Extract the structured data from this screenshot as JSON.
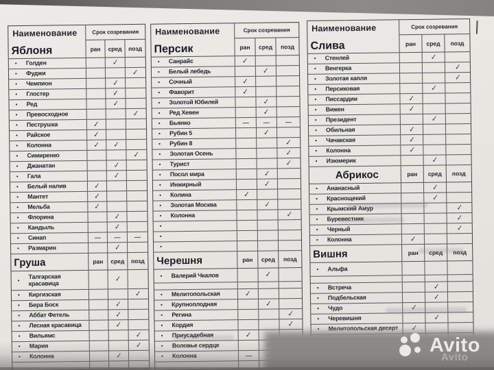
{
  "header_labels": {
    "name": "Наименование",
    "ripening": "Срок созревания",
    "early": "ран",
    "mid": "сред",
    "late": "позд"
  },
  "marks": {
    "check": "✓",
    "dash": "—",
    "bullet": "•"
  },
  "watermark": {
    "brand": "Avito"
  },
  "columns": [
    {
      "sections": [
        {
          "title": "Яблоня",
          "header": "full",
          "rows": [
            {
              "n": "Голден",
              "m": [
                "",
                "c",
                ""
              ]
            },
            {
              "n": "Фуджи",
              "m": [
                "",
                "",
                "c"
              ]
            },
            {
              "n": "Чемпион",
              "m": [
                "",
                "c",
                ""
              ]
            },
            {
              "n": "Глостер",
              "m": [
                "",
                "c",
                ""
              ]
            },
            {
              "n": "Ред",
              "m": [
                "",
                "c",
                ""
              ]
            },
            {
              "n": "Превосходное",
              "m": [
                "",
                "",
                "c"
              ]
            },
            {
              "n": "Пеструшка",
              "m": [
                "c",
                "",
                ""
              ]
            },
            {
              "n": "Райское",
              "m": [
                "c",
                "",
                ""
              ]
            },
            {
              "n": "Колонна",
              "m": [
                "c",
                "c",
                ""
              ]
            },
            {
              "n": "Симиренко",
              "m": [
                "",
                "",
                "c"
              ]
            },
            {
              "n": "Джанатан",
              "m": [
                "",
                "c",
                ""
              ]
            },
            {
              "n": "Гала",
              "m": [
                "",
                "c",
                ""
              ]
            },
            {
              "n": "Белый налив",
              "m": [
                "c",
                "",
                ""
              ]
            },
            {
              "n": "Мантет",
              "m": [
                "c",
                "",
                ""
              ]
            },
            {
              "n": "Мельба",
              "m": [
                "c",
                "",
                ""
              ]
            },
            {
              "n": "Флорина",
              "m": [
                "",
                "c",
                ""
              ]
            },
            {
              "n": "Кандыль",
              "m": [
                "",
                "c",
                ""
              ]
            },
            {
              "n": "Синап",
              "m": [
                "d",
                "d",
                "d"
              ]
            },
            {
              "n": "Размарин",
              "m": [
                "",
                "c",
                ""
              ]
            }
          ]
        },
        {
          "title": "Груша",
          "header": "compact",
          "rows": [
            {
              "n": "Талгарская красавица",
              "m": [
                "",
                "c",
                ""
              ],
              "tall2": true
            },
            {
              "n": "Киргизская",
              "m": [
                "",
                "",
                "c"
              ]
            },
            {
              "n": "Бера Боск",
              "m": [
                "",
                "c",
                ""
              ]
            },
            {
              "n": "Аббат Фетель",
              "m": [
                "",
                "c",
                ""
              ]
            },
            {
              "n": "Лесная красавица",
              "m": [
                "",
                "c",
                ""
              ]
            },
            {
              "n": "Вильямс",
              "m": [
                "",
                "",
                "c"
              ]
            },
            {
              "n": "Мария",
              "m": [
                "",
                "",
                "c"
              ]
            },
            {
              "n": "Колонна",
              "m": [
                "",
                "c",
                ""
              ]
            },
            {
              "n": "",
              "m": [
                "",
                "",
                ""
              ],
              "bullet": false,
              "empty": true
            }
          ]
        }
      ]
    },
    {
      "sections": [
        {
          "title": "Персик",
          "header": "full",
          "rows": [
            {
              "n": "Санрайс",
              "m": [
                "c",
                "",
                ""
              ]
            },
            {
              "n": "Белый лебедь",
              "m": [
                "",
                "c",
                ""
              ]
            },
            {
              "n": "Сочный",
              "m": [
                "c",
                "",
                ""
              ]
            },
            {
              "n": "Фаворит",
              "m": [
                "c",
                "",
                ""
              ]
            },
            {
              "n": "Золотой Юбилей",
              "m": [
                "",
                "c",
                ""
              ]
            },
            {
              "n": "Ред Хевен",
              "m": [
                "",
                "c",
                ""
              ]
            },
            {
              "n": "Бьянко",
              "m": [
                "d",
                "d",
                "d"
              ]
            },
            {
              "n": "Рубин 5",
              "m": [
                "",
                "c",
                ""
              ]
            },
            {
              "n": "Рубин 8",
              "m": [
                "",
                "",
                "c"
              ]
            },
            {
              "n": "Золотая Осень",
              "m": [
                "",
                "",
                "c"
              ]
            },
            {
              "n": "Турист",
              "m": [
                "",
                "",
                "c"
              ]
            },
            {
              "n": "Посол мира",
              "m": [
                "",
                "c",
                ""
              ]
            },
            {
              "n": "Инжирный",
              "m": [
                "",
                "c",
                ""
              ]
            },
            {
              "n": "Колина",
              "m": [
                "c",
                "",
                ""
              ]
            },
            {
              "n": "Золотая Москва",
              "m": [
                "",
                "c",
                ""
              ]
            },
            {
              "n": "Колонна",
              "m": [
                "",
                "",
                "c"
              ]
            },
            {
              "n": "",
              "m": [
                "",
                "",
                ""
              ],
              "bullet": true
            },
            {
              "n": "",
              "m": [
                "",
                "",
                ""
              ],
              "bullet": true
            },
            {
              "n": "",
              "m": [
                "",
                "",
                ""
              ],
              "bullet": true
            }
          ]
        },
        {
          "title": "Черешня",
          "header": "compact",
          "rows": [
            {
              "n": "Валерий Чкалов",
              "m": [
                "",
                "c",
                ""
              ],
              "tall": true
            },
            {
              "n": "",
              "m": [
                "",
                "",
                ""
              ],
              "bullet": false,
              "short": true
            },
            {
              "n": "Мелитопольская",
              "m": [
                "c",
                "",
                ""
              ]
            },
            {
              "n": "Крупноплодная",
              "m": [
                "",
                "c",
                ""
              ]
            },
            {
              "n": "Регина",
              "m": [
                "",
                "",
                "c"
              ]
            },
            {
              "n": "Кордия",
              "m": [
                "",
                "",
                "c"
              ]
            },
            {
              "n": "Приусадебная",
              "m": [
                "c",
                "",
                ""
              ]
            },
            {
              "n": "Воловье сердце",
              "m": [
                "",
                "c",
                ""
              ]
            },
            {
              "n": "Колонна",
              "m": [
                "d",
                "d",
                "d"
              ]
            },
            {
              "n": "",
              "m": [
                "",
                "",
                ""
              ],
              "bullet": false,
              "empty": true
            }
          ]
        }
      ]
    },
    {
      "sections": [
        {
          "title": "Слива",
          "header": "full",
          "rows": [
            {
              "n": "Стенлей",
              "m": [
                "",
                "c",
                ""
              ]
            },
            {
              "n": "Венгерка",
              "m": [
                "",
                "",
                "c"
              ]
            },
            {
              "n": "Золотая капля",
              "m": [
                "",
                "",
                "c"
              ]
            },
            {
              "n": "Персиковая",
              "m": [
                "",
                "c",
                ""
              ]
            },
            {
              "n": "Писсардии",
              "m": [
                "c",
                "",
                ""
              ]
            },
            {
              "n": "Вижен",
              "m": [
                "c",
                "",
                ""
              ]
            },
            {
              "n": "Президент",
              "m": [
                "",
                "c",
                ""
              ]
            },
            {
              "n": "Обильная",
              "m": [
                "c",
                "",
                ""
              ]
            },
            {
              "n": "Чачакская",
              "m": [
                "c",
                "",
                ""
              ]
            },
            {
              "n": "Колонна",
              "m": [
                "c",
                "",
                ""
              ]
            },
            {
              "n": "Изюмерик",
              "m": [
                "",
                "c",
                ""
              ]
            }
          ]
        },
        {
          "title": "Абрикос",
          "header": "compact",
          "indent": true,
          "rows": [
            {
              "n": "Ананасный",
              "m": [
                "",
                "c",
                ""
              ]
            },
            {
              "n": "Краснощекий",
              "m": [
                "",
                "c",
                ""
              ]
            },
            {
              "n": "Крымский Амур",
              "m": [
                "",
                "",
                "c"
              ]
            },
            {
              "n": "Буревестник",
              "m": [
                "",
                "",
                "c"
              ]
            },
            {
              "n": "Черный",
              "m": [
                "",
                "",
                "c"
              ]
            },
            {
              "n": "Колонна",
              "m": [
                "c",
                "",
                ""
              ]
            }
          ]
        },
        {
          "title": "Вишня",
          "header": "compact",
          "rows": [
            {
              "n": "Альфа",
              "m": [
                "",
                "",
                ""
              ],
              "tall": true
            },
            {
              "n": "",
              "m": [
                "",
                "",
                ""
              ],
              "bullet": false,
              "short": true
            },
            {
              "n": "Встреча",
              "m": [
                "",
                "c",
                ""
              ]
            },
            {
              "n": "Подбельская",
              "m": [
                "",
                "c",
                ""
              ]
            },
            {
              "n": "Чудо",
              "m": [
                "c",
                "",
                ""
              ]
            },
            {
              "n": "Черевишня",
              "m": [
                "",
                "c",
                ""
              ]
            },
            {
              "n": "Мелитопольская десерт",
              "m": [
                "c",
                "",
                ""
              ]
            },
            {
              "n": "",
              "m": [
                "",
                "",
                ""
              ],
              "bullet": true
            },
            {
              "n": "",
              "m": [
                "",
                "",
                ""
              ],
              "bullet": true
            }
          ]
        }
      ]
    }
  ]
}
